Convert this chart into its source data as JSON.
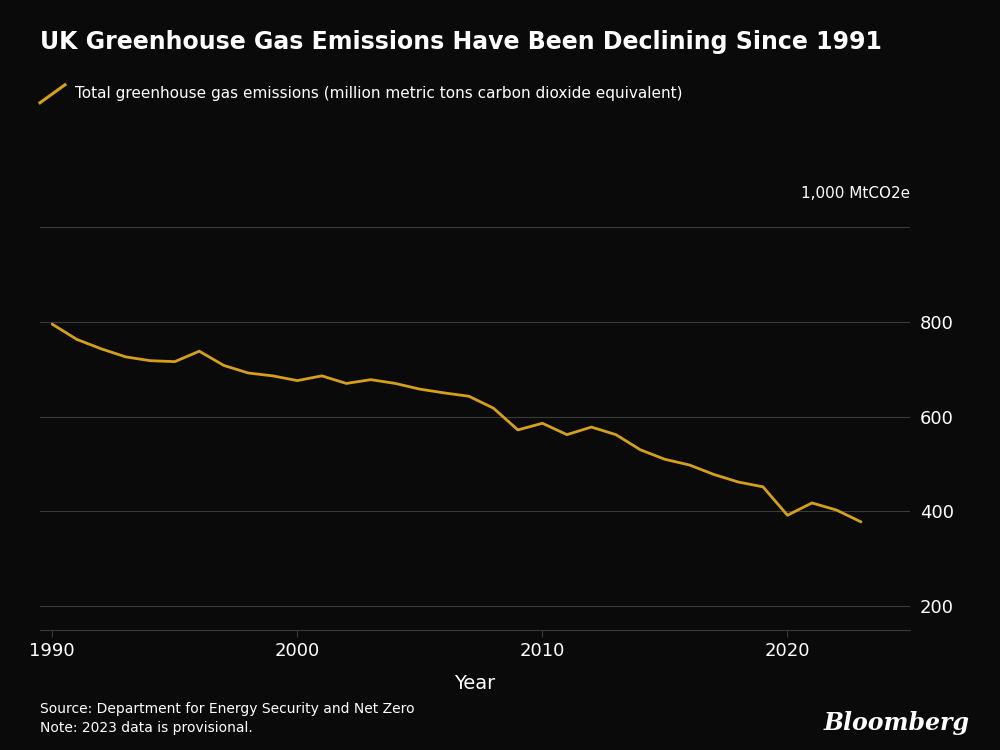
{
  "title": "UK Greenhouse Gas Emissions Have Been Declining Since 1991",
  "legend_label": "Total greenhouse gas emissions (million metric tons carbon dioxide equivalent)",
  "ylabel_unit": "1,000 MtCO2e",
  "xlabel": "Year",
  "source_text": "Source: Department for Energy Security and Net Zero\nNote: 2023 data is provisional.",
  "bloomberg_text": "Bloomberg",
  "background_color": "#0a0a0a",
  "text_color": "#ffffff",
  "line_color": "#d4a017",
  "grid_color": "#3a3a3a",
  "yticks": [
    200,
    400,
    600,
    800
  ],
  "ytick_labels": [
    "200",
    "400",
    "600",
    "800"
  ],
  "ylim": [
    150,
    1020
  ],
  "xlim": [
    1989.5,
    2025
  ],
  "xticks": [
    1990,
    2000,
    2010,
    2020
  ],
  "years": [
    1990,
    1991,
    1992,
    1993,
    1994,
    1995,
    1996,
    1997,
    1998,
    1999,
    2000,
    2001,
    2002,
    2003,
    2004,
    2005,
    2006,
    2007,
    2008,
    2009,
    2010,
    2011,
    2012,
    2013,
    2014,
    2015,
    2016,
    2017,
    2018,
    2019,
    2020,
    2021,
    2022,
    2023
  ],
  "emissions": [
    795,
    763,
    743,
    726,
    718,
    716,
    738,
    708,
    692,
    686,
    676,
    686,
    670,
    678,
    670,
    658,
    650,
    643,
    618,
    572,
    586,
    562,
    578,
    562,
    530,
    510,
    498,
    478,
    462,
    452,
    392,
    418,
    403,
    378
  ]
}
